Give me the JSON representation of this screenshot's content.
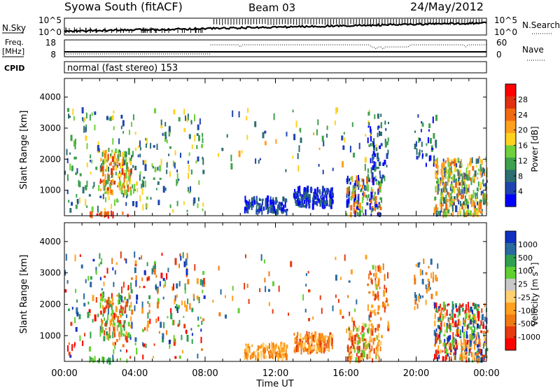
{
  "header": {
    "station": "Syowa South (fitACF)",
    "beam": "Beam 03",
    "date": "24/May/2012"
  },
  "panels": {
    "nsky_label": "N.Sky",
    "nsearch_label": "N.Search",
    "nsky_ticks": [
      "10^5",
      "10^0"
    ],
    "nsearch_ticks": [
      "10^5",
      "10^0"
    ],
    "freq_label": "Freq.",
    "freq_unit": "[MHz]",
    "freq_ticks": [
      "18",
      "8"
    ],
    "nave_label": "Nave",
    "nave_ticks": [
      "60",
      "0"
    ],
    "cpid_label": "CPID",
    "cpid_text": "normal (fast stereo) 153"
  },
  "colors": {
    "power": [
      "#0000ff",
      "#1f44b0",
      "#2d6e70",
      "#3fa04d",
      "#6fd03c",
      "#ffd21f",
      "#ffa01f",
      "#f06a10",
      "#e03010",
      "#ff0000"
    ],
    "velocity": [
      "#ff0000",
      "#e63a10",
      "#f07a12",
      "#ffa020",
      "#ffd070",
      "#c8c8c8",
      "#60d030",
      "#2fa050",
      "#2a6aa0",
      "#1030c0"
    ]
  },
  "chart_data": [
    {
      "type": "heatmap",
      "name": "power",
      "ylabel": "Slant Range [km]",
      "xlabel": "Time UT",
      "x_ticks": [
        "00:00",
        "04:00",
        "08:00",
        "12:00",
        "16:00",
        "20:00",
        "00:00"
      ],
      "xlim_hours": [
        0,
        24
      ],
      "ylim": [
        180,
        4600
      ],
      "y_ticks": [
        1000,
        2000,
        3000,
        4000
      ],
      "colorbar_label": "Power [dB]",
      "colorbar_ticks": [
        "28",
        "24",
        "20",
        "16",
        "12",
        "8",
        "4"
      ],
      "regions": [
        {
          "t": [
            0.0,
            8.0
          ],
          "r": [
            300,
            3600
          ],
          "n": 260,
          "c": [
            2,
            3,
            4,
            1,
            5
          ]
        },
        {
          "t": [
            2.0,
            3.8
          ],
          "r": [
            900,
            2300
          ],
          "n": 130,
          "c": [
            3,
            5,
            6,
            7,
            8,
            4
          ]
        },
        {
          "t": [
            8.3,
            18.0
          ],
          "r": [
            1500,
            3600
          ],
          "n": 70,
          "c": [
            1,
            2,
            3,
            5,
            6
          ]
        },
        {
          "t": [
            10.2,
            12.6
          ],
          "r": [
            280,
            720
          ],
          "n": 120,
          "c": [
            0,
            1,
            2
          ]
        },
        {
          "t": [
            13.0,
            15.2
          ],
          "r": [
            480,
            1050
          ],
          "n": 170,
          "c": [
            0,
            1,
            2
          ]
        },
        {
          "t": [
            16.0,
            18.0
          ],
          "r": [
            200,
            1400
          ],
          "n": 150,
          "c": [
            0,
            1,
            3,
            4,
            6,
            7
          ]
        },
        {
          "t": [
            17.2,
            18.4
          ],
          "r": [
            1200,
            3200
          ],
          "n": 70,
          "c": [
            0,
            1,
            2,
            3
          ]
        },
        {
          "t": [
            19.8,
            21.2
          ],
          "r": [
            1800,
            3400
          ],
          "n": 40,
          "c": [
            0,
            1,
            2,
            3
          ]
        },
        {
          "t": [
            21.0,
            24.0
          ],
          "r": [
            200,
            2000
          ],
          "n": 360,
          "c": [
            1,
            2,
            3,
            4,
            5,
            6,
            7
          ]
        },
        {
          "t": [
            1.4,
            3.6
          ],
          "r": [
            180,
            260
          ],
          "n": 18,
          "c": [
            7,
            8,
            9
          ]
        }
      ]
    },
    {
      "type": "heatmap",
      "name": "velocity",
      "ylabel": "Slant Range [km]",
      "xlabel": "Time UT",
      "x_ticks": [
        "00:00",
        "04:00",
        "08:00",
        "12:00",
        "16:00",
        "20:00",
        "00:00"
      ],
      "xlim_hours": [
        0,
        24
      ],
      "ylim": [
        180,
        4600
      ],
      "y_ticks": [
        1000,
        2000,
        3000,
        4000
      ],
      "colorbar_label": "Velocity [m s^-1]",
      "colorbar_ticks": [
        "1000",
        "500",
        "100",
        "25",
        "-25",
        "-100",
        "-500",
        "-1000"
      ],
      "regions": [
        {
          "t": [
            0.0,
            8.0
          ],
          "r": [
            300,
            3600
          ],
          "n": 260,
          "c": [
            0,
            1,
            2,
            3,
            6,
            7,
            8,
            9
          ]
        },
        {
          "t": [
            2.0,
            3.8
          ],
          "r": [
            900,
            2300
          ],
          "n": 120,
          "c": [
            1,
            2,
            3,
            6,
            7
          ]
        },
        {
          "t": [
            8.3,
            18.0
          ],
          "r": [
            1500,
            3600
          ],
          "n": 60,
          "c": [
            1,
            2,
            3,
            6,
            8
          ]
        },
        {
          "t": [
            10.2,
            12.6
          ],
          "r": [
            280,
            720
          ],
          "n": 110,
          "c": [
            2,
            3,
            4
          ]
        },
        {
          "t": [
            13.0,
            15.2
          ],
          "r": [
            480,
            1050
          ],
          "n": 160,
          "c": [
            1,
            2,
            3,
            4
          ]
        },
        {
          "t": [
            16.0,
            18.0
          ],
          "r": [
            200,
            1400
          ],
          "n": 140,
          "c": [
            1,
            2,
            3,
            4,
            6
          ]
        },
        {
          "t": [
            17.2,
            18.4
          ],
          "r": [
            1200,
            3200
          ],
          "n": 60,
          "c": [
            1,
            2,
            3
          ]
        },
        {
          "t": [
            19.8,
            21.2
          ],
          "r": [
            1800,
            3400
          ],
          "n": 40,
          "c": [
            2,
            3,
            8
          ]
        },
        {
          "t": [
            21.0,
            24.0
          ],
          "r": [
            200,
            2000
          ],
          "n": 360,
          "c": [
            0,
            1,
            2,
            3,
            4,
            6,
            7,
            8,
            9
          ]
        },
        {
          "t": [
            1.4,
            3.6
          ],
          "r": [
            180,
            260
          ],
          "n": 18,
          "c": [
            6,
            7
          ]
        }
      ]
    }
  ]
}
